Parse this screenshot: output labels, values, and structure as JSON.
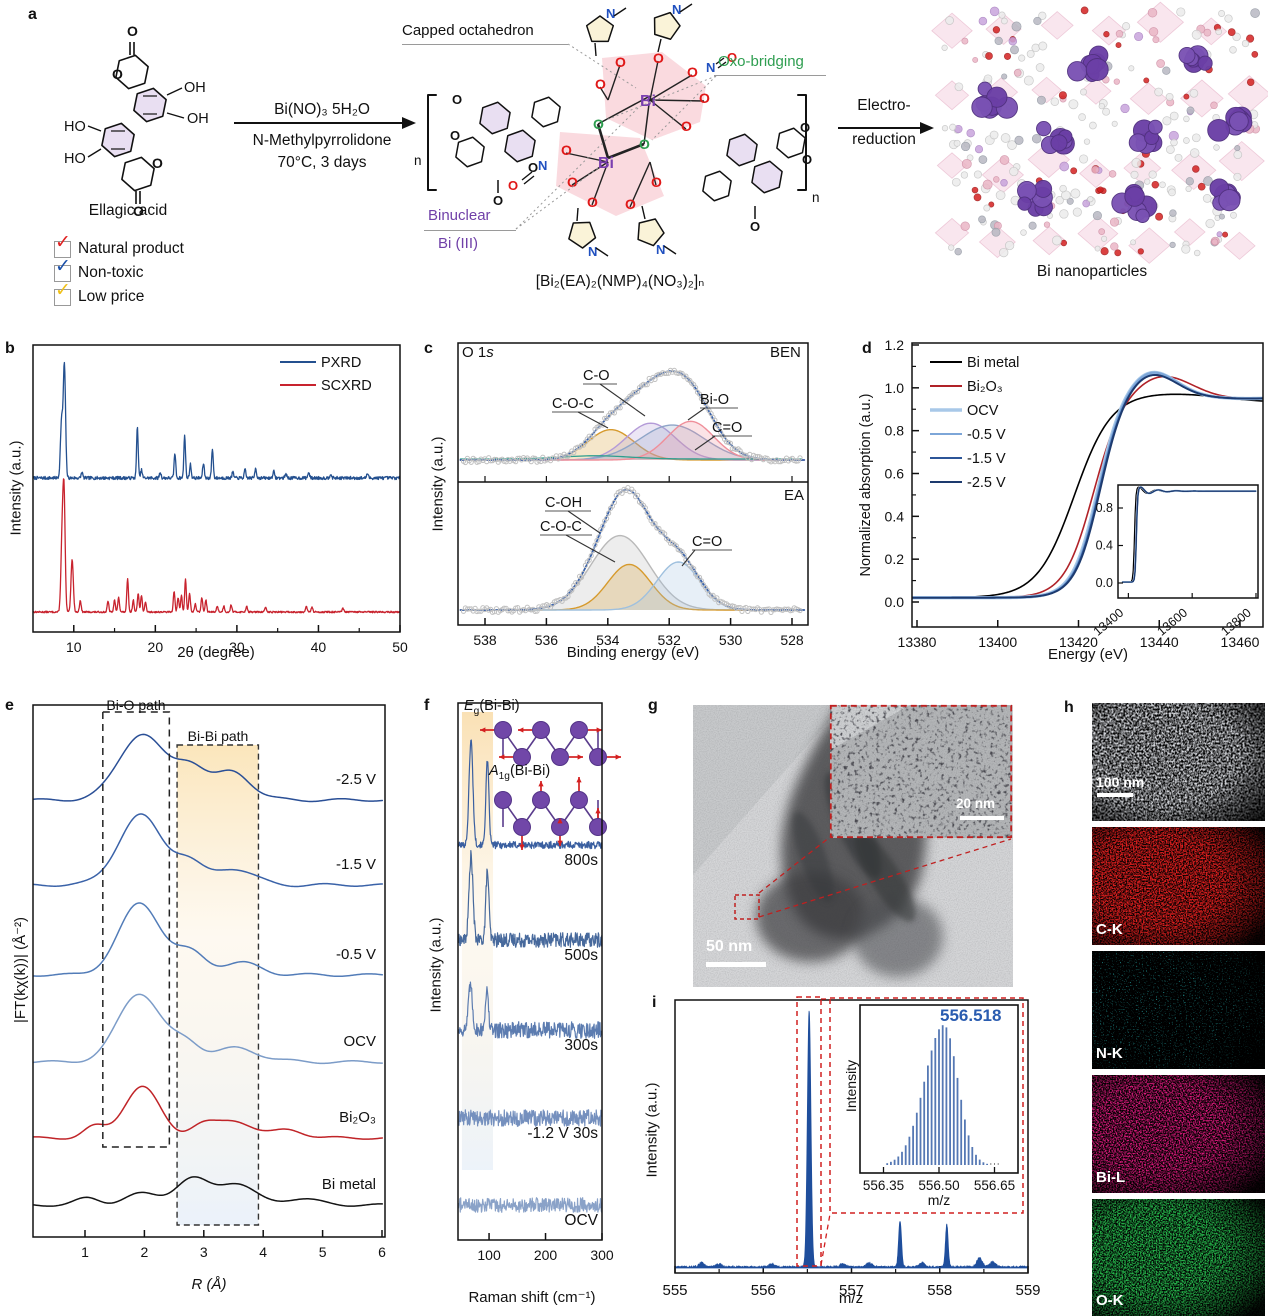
{
  "panels": {
    "a": "a",
    "b": "b",
    "c": "c",
    "d": "d",
    "e": "e",
    "f": "f",
    "g": "g",
    "h": "h",
    "i": "i"
  },
  "panel_a": {
    "ellagic_caption": "Ellagic acid",
    "checklist": [
      {
        "label": "Natural product",
        "color": "#e02020"
      },
      {
        "label": "Non-toxic",
        "color": "#1a4fa8"
      },
      {
        "label": "Low price",
        "color": "#f0c018"
      }
    ],
    "reagent_line1": "Bi(NO)₃ 5H₂O",
    "reagent_line2": "N-Methylpyrrolidone",
    "reagent_line3": "70°C, 3 days",
    "ann_capped": "Capped octahedron",
    "ann_oxo": "Oxo-bridging",
    "ann_binuclear": "Binuclear",
    "ann_bi3": "Bi (III)",
    "formula": "[Bi₂(EA)₂(NMP)₄(NO₃)₂]ₙ",
    "electro_line1": "Electro-",
    "electro_line2": "reduction",
    "product_caption": "Bi nanoparticles",
    "colors": {
      "oxo_green": "#2e9e50",
      "binuclear_purple": "#7040a8",
      "bi_purple": "#7a3fb0",
      "o_red": "#e01818",
      "n_blue": "#2050c0",
      "ring_lavender": "#e9dff2",
      "nmp_cream": "#faf3d8",
      "octa_pink": "#f3a3b0"
    }
  },
  "chart_data": [
    {
      "panel": "b",
      "type": "line",
      "xlabel": "2θ (degree)",
      "ylabel": "Intensity (a.u.)",
      "xlim": [
        5,
        50
      ],
      "xticks": [
        10,
        20,
        30,
        40,
        50
      ],
      "legend_position": "top-right",
      "series": [
        {
          "name": "PXRD",
          "color": "#24508f",
          "peaks": [
            [
              8.5,
              0.5
            ],
            [
              8.85,
              1.0
            ],
            [
              11.0,
              0.05
            ],
            [
              17.8,
              0.45
            ],
            [
              18.3,
              0.07
            ],
            [
              20.6,
              0.05
            ],
            [
              22.4,
              0.22
            ],
            [
              23.6,
              0.38
            ],
            [
              24.3,
              0.12
            ],
            [
              25.9,
              0.13
            ],
            [
              27.0,
              0.26
            ],
            [
              29.5,
              0.05
            ],
            [
              31.0,
              0.07
            ],
            [
              32.3,
              0.09
            ],
            [
              34.5,
              0.06
            ],
            [
              36.0,
              0.04
            ],
            [
              38.8,
              0.05
            ],
            [
              41.5,
              0.04
            ],
            [
              46.0,
              0.04
            ]
          ]
        },
        {
          "name": "SCXRD",
          "color": "#c8232e",
          "peaks": [
            [
              8.55,
              0.55
            ],
            [
              8.8,
              1.0
            ],
            [
              9.8,
              0.45
            ],
            [
              10.8,
              0.1
            ],
            [
              14.2,
              0.09
            ],
            [
              15.0,
              0.1
            ],
            [
              15.5,
              0.13
            ],
            [
              16.6,
              0.28
            ],
            [
              17.3,
              0.1
            ],
            [
              17.9,
              0.16
            ],
            [
              18.3,
              0.14
            ],
            [
              18.8,
              0.08
            ],
            [
              22.3,
              0.18
            ],
            [
              22.8,
              0.12
            ],
            [
              23.2,
              0.14
            ],
            [
              23.7,
              0.28
            ],
            [
              24.2,
              0.16
            ],
            [
              24.9,
              0.07
            ],
            [
              25.7,
              0.12
            ],
            [
              26.2,
              0.1
            ],
            [
              27.6,
              0.05
            ],
            [
              28.4,
              0.05
            ],
            [
              29.3,
              0.06
            ],
            [
              31.2,
              0.05
            ],
            [
              33.5,
              0.04
            ],
            [
              38.5,
              0.05
            ],
            [
              39.2,
              0.04
            ],
            [
              43.0,
              0.03
            ]
          ]
        }
      ]
    },
    {
      "panel": "c",
      "type": "line",
      "xlabel": "Binding energy (eV)",
      "ylabel": "Intensity (a.u.)",
      "xticks": [
        538,
        536,
        534,
        532,
        530,
        528
      ],
      "x_reversed": true,
      "subpanels": [
        {
          "tag": "BEN",
          "corner_pre": "O 1",
          "corner_it": "s",
          "envelope_color": "#3a62aa",
          "data_color": "#c0c0c0",
          "baseline_color": "#2e9e8e",
          "components": [
            {
              "label": "C-O-C",
              "center": 533.9,
              "sigma": 0.75,
              "amp": 0.33,
              "color": "#d69a2d"
            },
            {
              "label": "C-O",
              "center": 532.6,
              "sigma": 0.8,
              "amp": 0.4,
              "color": "#b49bd8"
            },
            {
              "label": "C=O",
              "center": 531.9,
              "sigma": 1.05,
              "amp": 0.38,
              "color": "#8fa5c8"
            },
            {
              "label": "Bi-O",
              "center": 531.3,
              "sigma": 0.75,
              "amp": 0.42,
              "color": "#ef8f9a"
            }
          ]
        },
        {
          "tag": "EA",
          "envelope_color": "#3a62aa",
          "data_color": "#c0c0c0",
          "components": [
            {
              "label": "C-OH",
              "center": 533.6,
              "sigma": 0.95,
              "amp": 0.62,
              "color": "#b9b9b9"
            },
            {
              "label": "C-O-C",
              "center": 533.3,
              "sigma": 0.7,
              "amp": 0.38,
              "color": "#d69a2d"
            },
            {
              "label": "C=O",
              "center": 531.7,
              "sigma": 0.7,
              "amp": 0.4,
              "color": "#9fc0de"
            }
          ]
        }
      ]
    },
    {
      "panel": "d",
      "type": "line",
      "xlabel": "Energy (eV)",
      "ylabel": "Normalized absorption (a.u.)",
      "xlim": [
        13378,
        13466
      ],
      "xticks": [
        13380,
        13400,
        13420,
        13440,
        13460
      ],
      "yticks": [
        "0.0",
        "0.2",
        "0.4",
        "0.6",
        "0.8",
        "1.0",
        "1.2"
      ],
      "series": [
        {
          "name": "Bi metal",
          "color": "#000000",
          "edge": 13419,
          "width": 4.6,
          "over": 0.02,
          "overE": 13450,
          "overW": 12,
          "lw": 1.6
        },
        {
          "name": "Bi₂O₃",
          "color": "#b02228",
          "edge": 13423.6,
          "width": 3.6,
          "over": 0.09,
          "overE": 13441,
          "overW": 7,
          "lw": 1.6
        },
        {
          "name": "OCV",
          "color": "#a8c8e8",
          "edge": 13424.6,
          "width": 3.1,
          "over": 0.11,
          "overE": 13438,
          "overW": 6,
          "lw": 3.4
        },
        {
          "name": "-0.5 V",
          "color": "#7da6d8",
          "edge": 13424.8,
          "width": 3.1,
          "over": 0.11,
          "overE": 13438,
          "overW": 6,
          "lw": 2.2
        },
        {
          "name": "-1.5 V",
          "color": "#2c5598",
          "edge": 13425.0,
          "width": 3.1,
          "over": 0.1,
          "overE": 13438,
          "overW": 6,
          "lw": 1.8
        },
        {
          "name": "-2.5 V",
          "color": "#1d3a6e",
          "edge": 13425.2,
          "width": 3.1,
          "over": 0.1,
          "overE": 13438,
          "overW": 6,
          "lw": 1.8
        }
      ],
      "inset": {
        "xticks": [
          13400,
          13600,
          13800
        ],
        "yticks": [
          "0.0",
          "0.4",
          "0.8"
        ]
      }
    },
    {
      "panel": "e",
      "type": "line",
      "xlabel": "R (Å)",
      "ylabel": "|FT(kχ(k))| (Å⁻²)",
      "xlim": [
        0.1,
        6
      ],
      "xticks": [
        1,
        2,
        3,
        4,
        5,
        6
      ],
      "boxes": [
        {
          "label": "Bi-O path",
          "r1": 1.3,
          "r2": 2.42
        },
        {
          "label": "Bi-Bi path",
          "r1": 2.55,
          "r2": 3.92
        }
      ],
      "series": [
        {
          "name": "-2.5 V",
          "color": "#2a4f96",
          "peaks": [
            [
              1.95,
              1.0,
              0.38
            ],
            [
              2.78,
              0.5,
              0.26
            ],
            [
              3.5,
              0.42,
              0.3
            ]
          ]
        },
        {
          "name": "-1.5 V",
          "color": "#3a62a8",
          "peaks": [
            [
              1.93,
              1.05,
              0.37
            ],
            [
              2.72,
              0.33,
              0.24
            ],
            [
              3.5,
              0.26,
              0.32
            ]
          ]
        },
        {
          "name": "-0.5 V",
          "color": "#527cb8",
          "peaks": [
            [
              1.93,
              1.08,
              0.36
            ],
            [
              2.78,
              0.3,
              0.26
            ],
            [
              3.6,
              0.18,
              0.35
            ]
          ]
        },
        {
          "name": "OCV",
          "color": "#7c9cc8",
          "peaks": [
            [
              1.92,
              1.05,
              0.36
            ],
            [
              2.72,
              0.26,
              0.24
            ],
            [
              3.55,
              0.2,
              0.4
            ]
          ]
        },
        {
          "name": "Bi₂O₃",
          "color": "#c02428",
          "peaks": [
            [
              1.15,
              0.16,
              0.18
            ],
            [
              1.95,
              0.78,
              0.3
            ],
            [
              2.95,
              0.2,
              0.22
            ],
            [
              3.55,
              0.26,
              0.3
            ],
            [
              4.45,
              0.12,
              0.25
            ]
          ]
        },
        {
          "name": "Bi metal",
          "color": "#141414",
          "peaks": [
            [
              1.05,
              0.1,
              0.2
            ],
            [
              1.95,
              0.16,
              0.3
            ],
            [
              2.78,
              0.38,
              0.28
            ],
            [
              3.52,
              0.34,
              0.3
            ],
            [
              4.6,
              0.1,
              0.3
            ]
          ]
        }
      ]
    },
    {
      "panel": "f",
      "type": "line",
      "xlabel": "Raman shift (cm⁻¹)",
      "ylabel": "Intensity (a.u.)",
      "xlim": [
        45,
        300
      ],
      "xticks": [
        100,
        200,
        300
      ],
      "band": {
        "x1": 52,
        "x2": 107
      },
      "modes": [
        {
          "pre": "E",
          "sub": "g",
          "rest": "(Bi-Bi)"
        },
        {
          "pre": "A",
          "sub": "1g",
          "rest": "(Bi-Bi)"
        }
      ],
      "traces": [
        {
          "label": "800s",
          "color": "#3a5fa0",
          "peaks": [
            [
              68,
              1.0
            ],
            [
              97,
              0.8
            ]
          ],
          "noise": 0.035
        },
        {
          "label": "500s",
          "color": "#47699c",
          "peaks": [
            [
              68,
              0.8
            ],
            [
              97,
              0.66
            ]
          ],
          "noise": 0.07
        },
        {
          "label": "300s",
          "color": "#5c7cb0",
          "peaks": [
            [
              67,
              0.42
            ],
            [
              96,
              0.38
            ]
          ],
          "noise": 0.08
        },
        {
          "label": "-1.2 V 30s",
          "color": "#7590be",
          "peaks": [],
          "noise": 0.08
        },
        {
          "label": "OCV",
          "color": "#8aa2c8",
          "peaks": [],
          "noise": 0.07
        }
      ]
    },
    {
      "panel": "g",
      "type": "image",
      "scale_main": "50 nm",
      "scale_inset": "20 nm"
    },
    {
      "panel": "h",
      "type": "image",
      "scale": "100 nm",
      "maps": [
        {
          "label": "C-K",
          "color": "#e03030"
        },
        {
          "label": "N-K",
          "color": "#35c8c8"
        },
        {
          "label": "Bi-L",
          "color": "#e03090"
        },
        {
          "label": "O-K",
          "color": "#35b055"
        }
      ]
    },
    {
      "panel": "i",
      "type": "line",
      "xlabel": "m/z",
      "ylabel": "Intensity (a.u.)",
      "xlim": [
        555,
        559
      ],
      "xticks": [
        555,
        556,
        557,
        558,
        559
      ],
      "color": "#1f4e9c",
      "peaks": [
        [
          556.52,
          1.0
        ],
        [
          557.55,
          0.18
        ],
        [
          558.08,
          0.165
        ]
      ],
      "inset": {
        "annotation": "556.518",
        "xticks": [
          "556.35",
          "556.50",
          "556.65"
        ],
        "xlabel": "m/z",
        "ylabel": "Intensity",
        "center": 556.513,
        "bar_color": "#5578b4"
      }
    }
  ]
}
